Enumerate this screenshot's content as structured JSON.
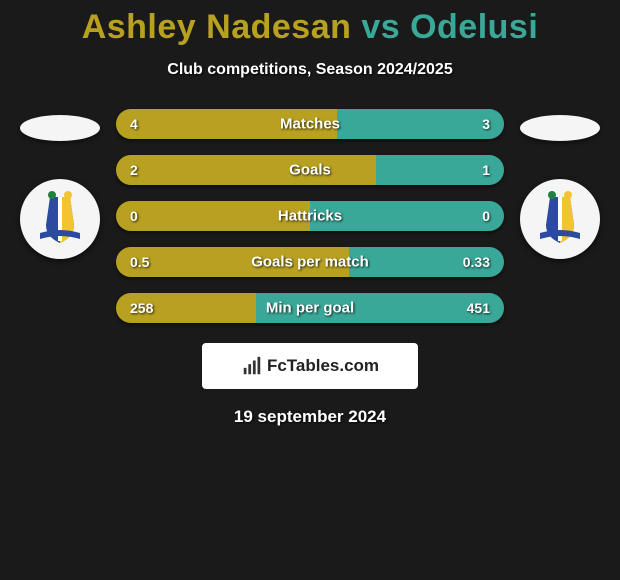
{
  "title": {
    "player1": "Ashley Nadesan",
    "vs": " vs ",
    "player2": "Odelusi",
    "player1_color": "#b8a020",
    "vs_color": "#3aa898",
    "player2_color": "#3aa898"
  },
  "subtitle": "Club competitions, Season 2024/2025",
  "stats": [
    {
      "label": "Matches",
      "left_val": "4",
      "right_val": "3",
      "left_pct": 57,
      "right_pct": 43
    },
    {
      "label": "Goals",
      "left_val": "2",
      "right_val": "1",
      "left_pct": 67,
      "right_pct": 33
    },
    {
      "label": "Hattricks",
      "left_val": "0",
      "right_val": "0",
      "left_pct": 50,
      "right_pct": 50
    },
    {
      "label": "Goals per match",
      "left_val": "0.5",
      "right_val": "0.33",
      "left_pct": 60,
      "right_pct": 40
    },
    {
      "label": "Min per goal",
      "left_val": "258",
      "right_val": "451",
      "left_pct": 36,
      "right_pct": 64
    }
  ],
  "colors": {
    "left_bar": "#b8a020",
    "right_bar": "#3aa898",
    "row_bg": "#2a2a2a"
  },
  "brand": "FcTables.com",
  "date": "19 september 2024",
  "crest_colors": {
    "shield_left": "#2b4aa0",
    "shield_right": "#f4c430",
    "shield_stripe": "#ffffff",
    "ribbon": "#2b4aa0",
    "accent": "#208040"
  }
}
